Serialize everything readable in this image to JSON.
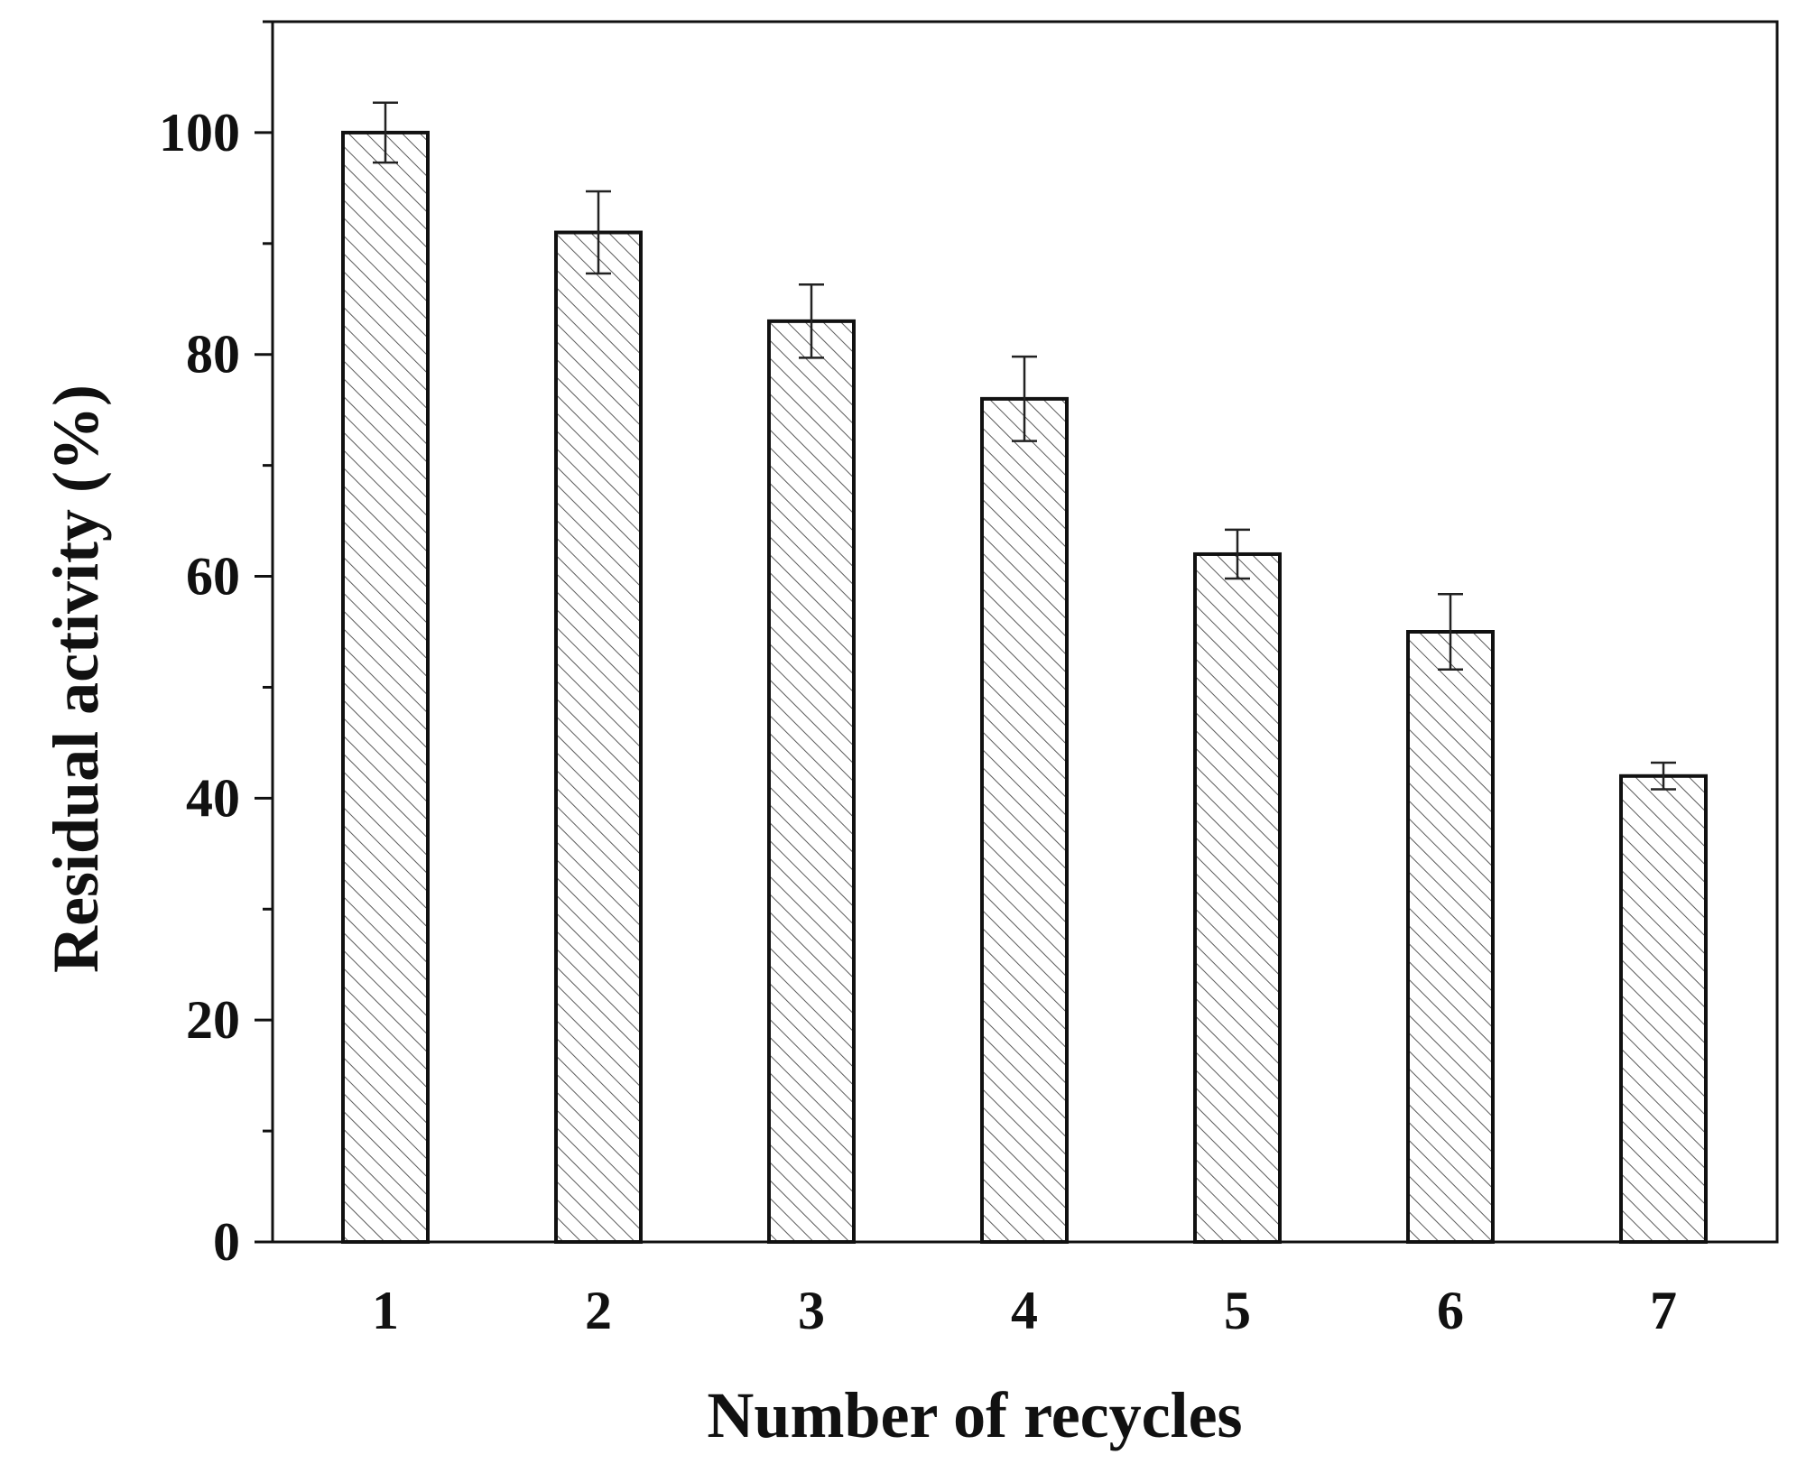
{
  "chart_data": {
    "type": "bar",
    "xlabel": "Number of recycles",
    "ylabel": "Residual activity (%)",
    "categories": [
      "1",
      "2",
      "3",
      "4",
      "5",
      "6",
      "7"
    ],
    "values": [
      100,
      91,
      83,
      76,
      62,
      55,
      42
    ],
    "errors": [
      2.7,
      3.7,
      3.3,
      3.8,
      2.2,
      3.4,
      1.2
    ],
    "ylim": [
      0,
      110
    ],
    "yticks": [
      0,
      20,
      40,
      60,
      80,
      100
    ],
    "ytick_labels": [
      "0",
      "20",
      "40",
      "60",
      "80",
      "100"
    ],
    "y_minor_step": 10,
    "bar_fill": "hatched",
    "colors": {
      "bar_edge": "#111111",
      "hatch": "#555555",
      "axis": "#111111"
    },
    "grid": false
  }
}
